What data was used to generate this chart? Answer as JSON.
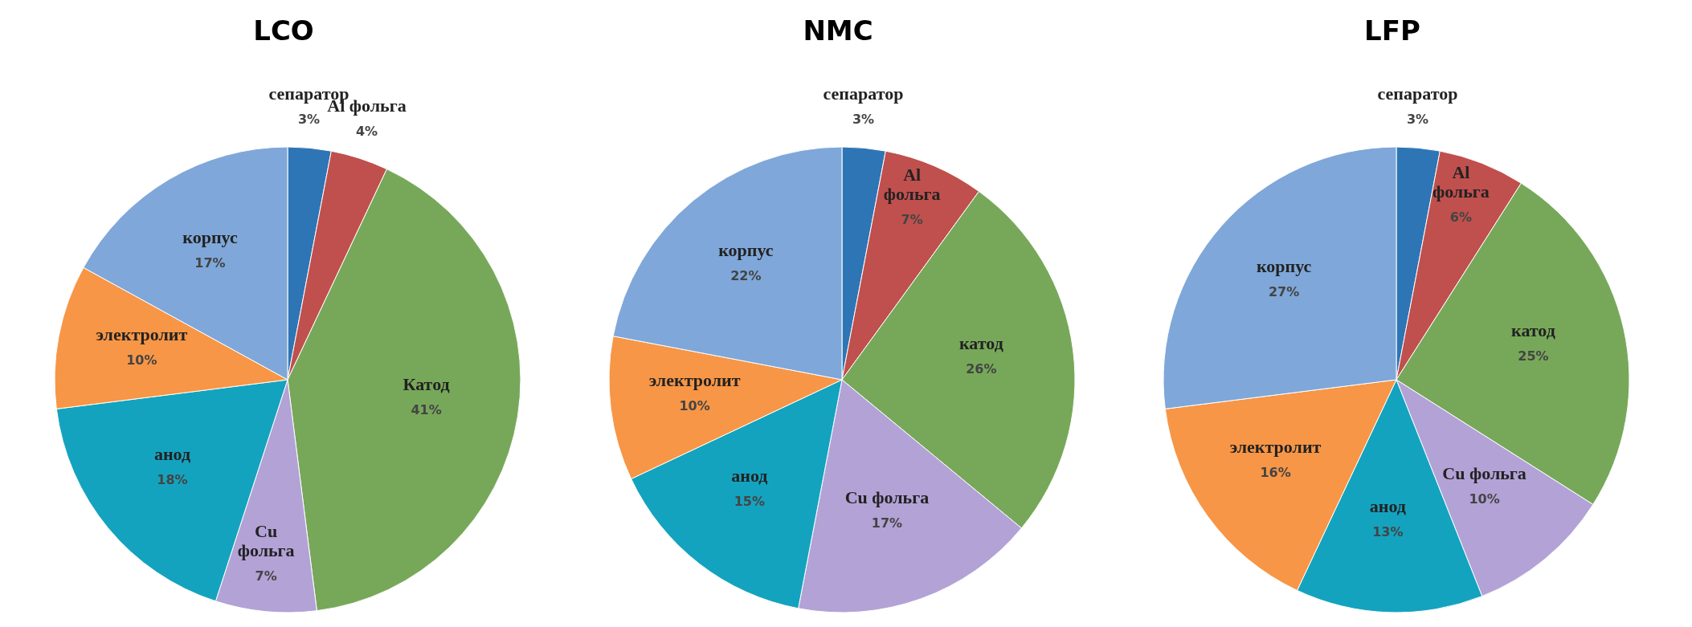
{
  "chart_data": [
    {
      "type": "pie",
      "title": "LCO",
      "categories": [
        "сепаратор",
        "Al фольга",
        "Катод",
        "Cu фольга",
        "анод",
        "электролит",
        "корпус"
      ],
      "values": [
        3,
        4,
        41,
        7,
        18,
        10,
        17
      ],
      "value_labels": [
        "3%",
        "4%",
        "41%",
        "7%",
        "18%",
        "10%",
        "17%"
      ],
      "colors": [
        "#2e75b6",
        "#c0504d",
        "#77a85a",
        "#b3a2d6",
        "#14a3bf",
        "#f79646",
        "#7fa7d9"
      ]
    },
    {
      "type": "pie",
      "title": "NMC",
      "categories": [
        "сепаратор",
        "Al фольга",
        "катод",
        "Cu фольга",
        "анод",
        "электролит",
        "корпус"
      ],
      "values": [
        3,
        7,
        26,
        17,
        15,
        10,
        22
      ],
      "value_labels": [
        "3%",
        "7%",
        "26%",
        "17%",
        "15%",
        "10%",
        "22%"
      ],
      "colors": [
        "#2e75b6",
        "#c0504d",
        "#77a85a",
        "#b3a2d6",
        "#14a3bf",
        "#f79646",
        "#7fa7d9"
      ]
    },
    {
      "type": "pie",
      "title": "LFP",
      "categories": [
        "сепаратор",
        "Al фольга",
        "катод",
        "Cu фольга",
        "анод",
        "электролит",
        "корпус"
      ],
      "values": [
        3,
        6,
        25,
        10,
        13,
        16,
        27
      ],
      "value_labels": [
        "3%",
        "6%",
        "25%",
        "10%",
        "13%",
        "16%",
        "27%"
      ],
      "colors": [
        "#2e75b6",
        "#c0504d",
        "#77a85a",
        "#b3a2d6",
        "#14a3bf",
        "#f79646",
        "#7fa7d9"
      ]
    }
  ]
}
